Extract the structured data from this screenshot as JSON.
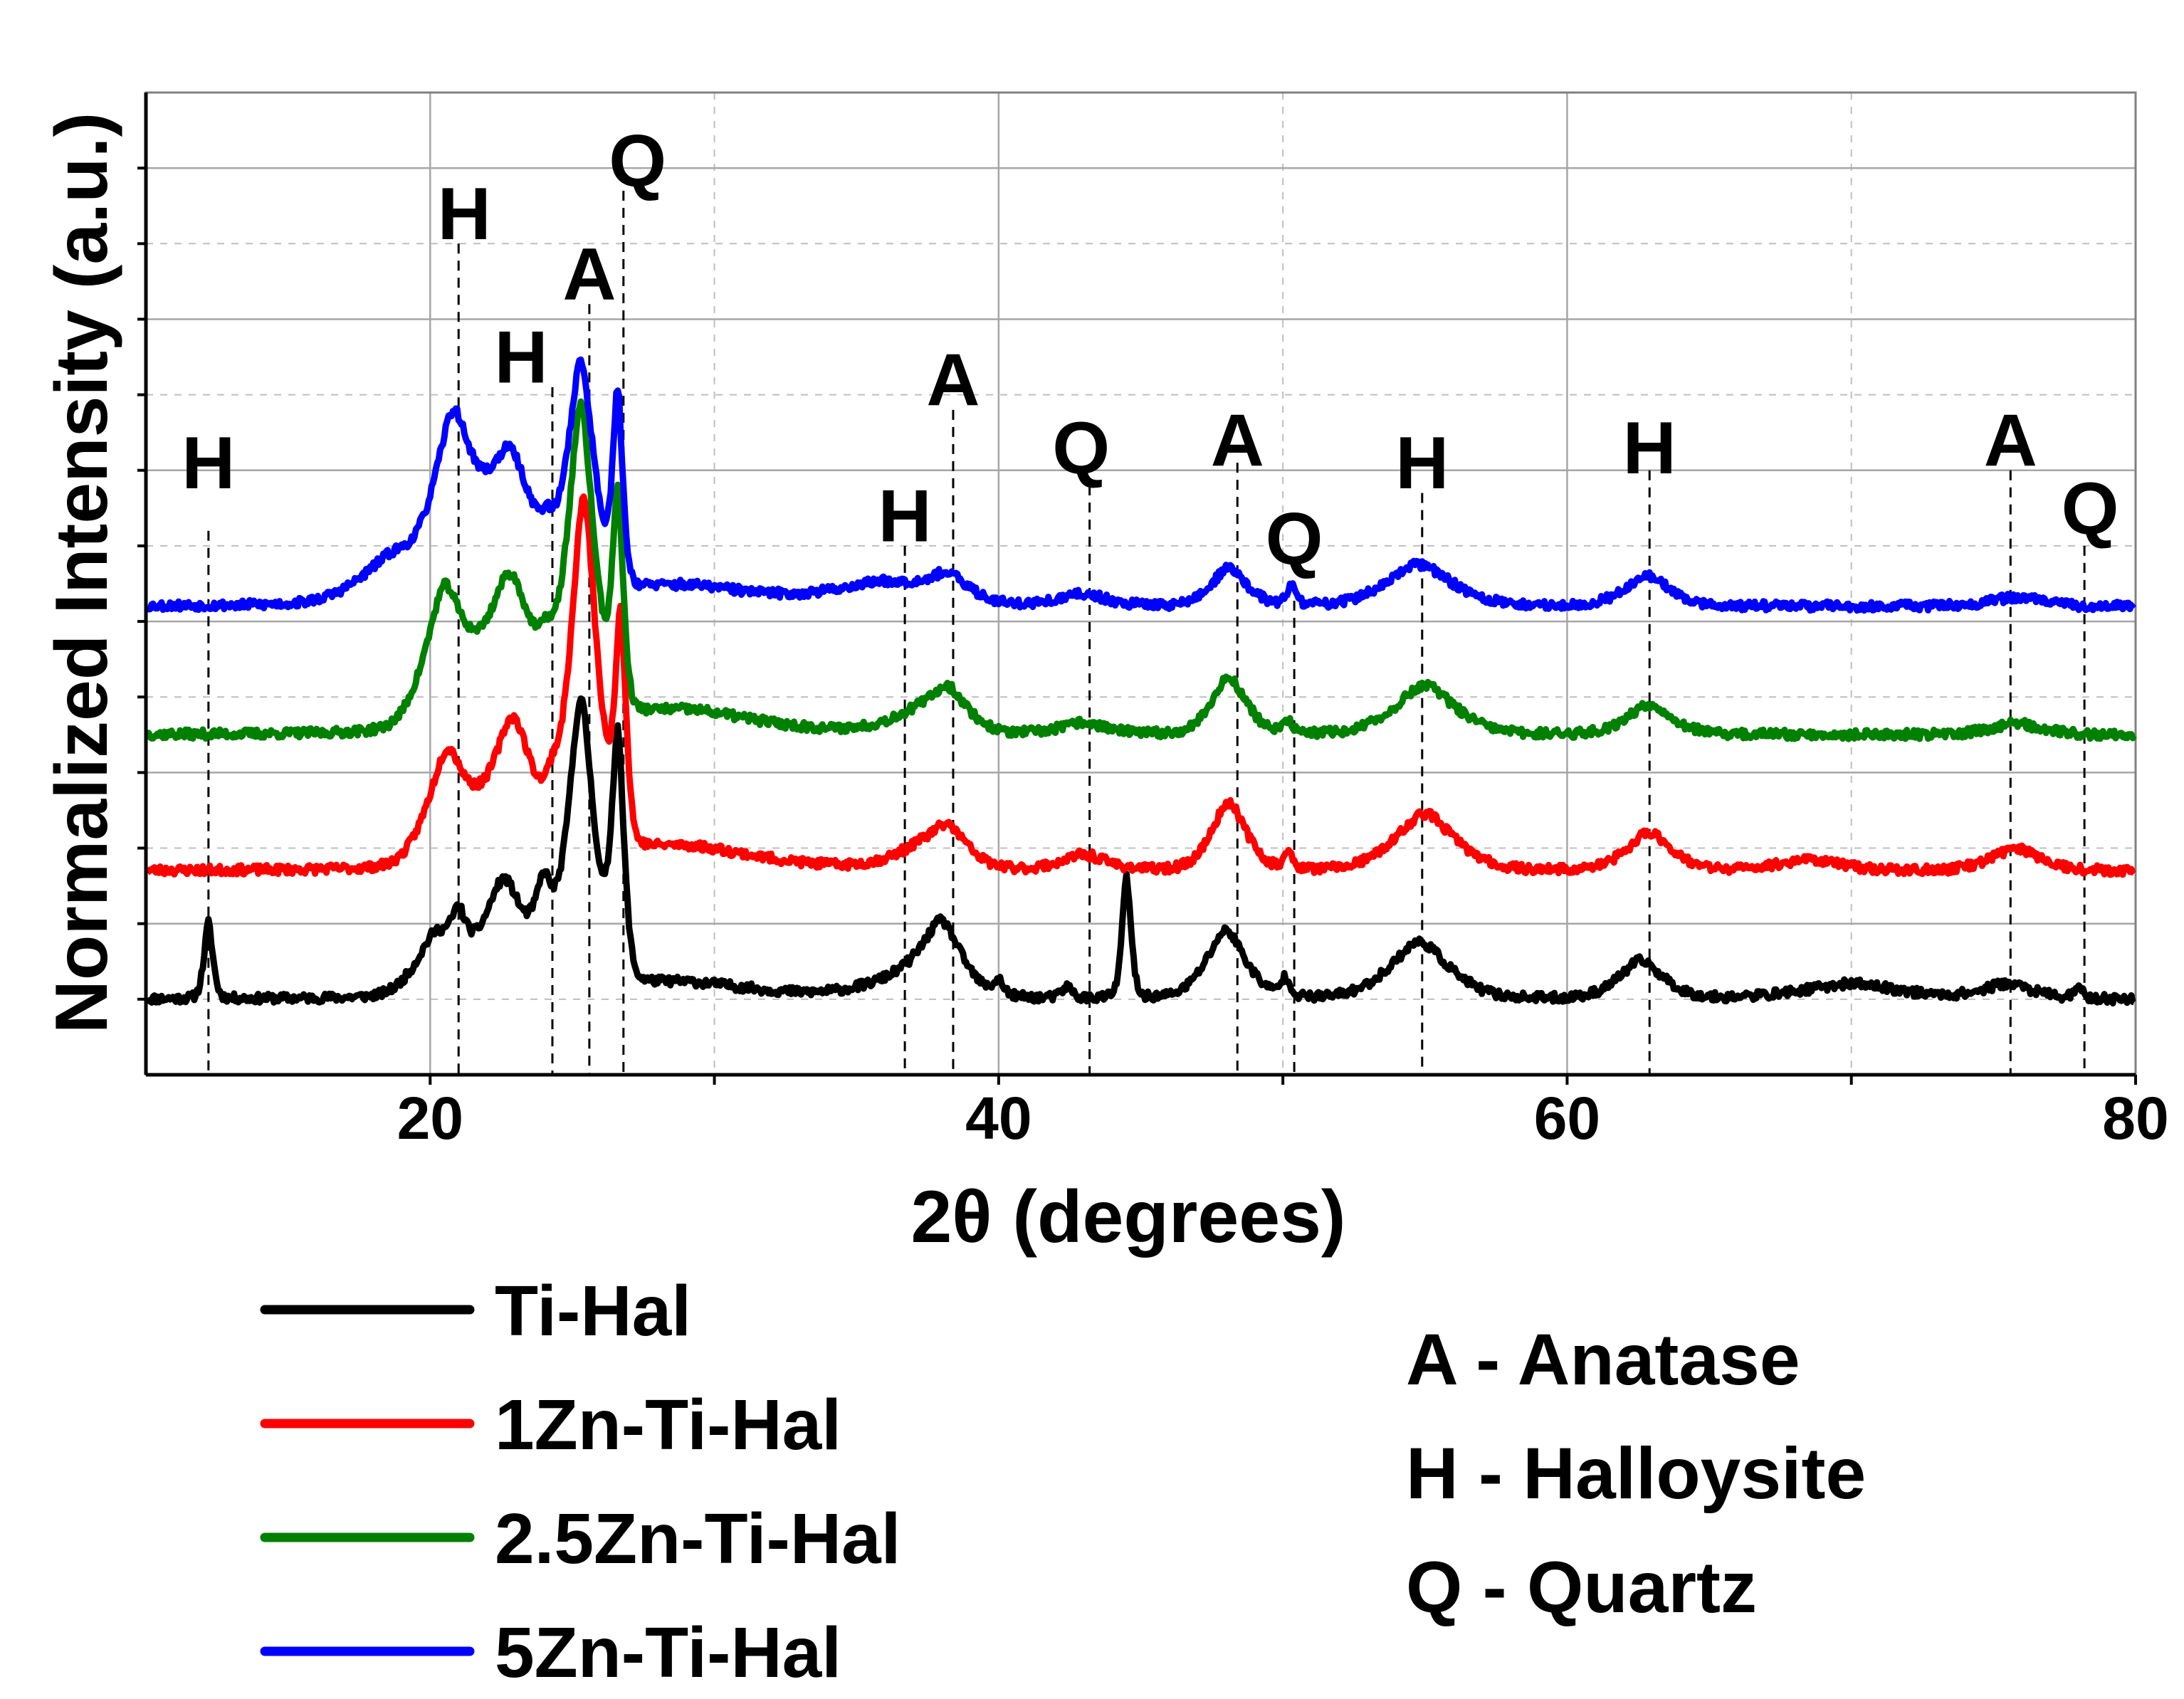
{
  "chart_data": {
    "type": "line",
    "title": "",
    "xlabel": "2θ (degrees)",
    "ylabel": "Normalized Intensity (a.u.)",
    "xlim": [
      10,
      80
    ],
    "ylim": [
      0,
      13
    ],
    "x_ticks": [
      20,
      40,
      60,
      80
    ],
    "grid": true,
    "series": [
      {
        "name": "Ti-Hal",
        "color": "#000000",
        "offset": 1.0,
        "noise_seed": 11,
        "peaks": [
          [
            12.2,
            1.0,
            0.18
          ],
          [
            20.2,
            0.8,
            0.8
          ],
          [
            21.0,
            0.55,
            0.3
          ],
          [
            22.6,
            1.5,
            0.9
          ],
          [
            24.0,
            1.0,
            0.35
          ],
          [
            25.3,
            3.8,
            0.55
          ],
          [
            26.6,
            3.2,
            0.25
          ],
          [
            29.0,
            0.2,
            3.0
          ],
          [
            38.0,
            0.9,
            0.8
          ],
          [
            36.5,
            0.25,
            1.5
          ],
          [
            40.0,
            0.2,
            0.2
          ],
          [
            42.4,
            0.15,
            0.2
          ],
          [
            44.5,
            1.6,
            0.18
          ],
          [
            48.0,
            0.9,
            0.8
          ],
          [
            50.1,
            0.25,
            0.2
          ],
          [
            54.8,
            0.75,
            1.2
          ],
          [
            62.6,
            0.5,
            0.9
          ],
          [
            70.0,
            0.2,
            2.0
          ],
          [
            75.5,
            0.2,
            1.0
          ],
          [
            78.0,
            0.12,
            0.2
          ]
        ]
      },
      {
        "name": "1Zn-Ti-Hal",
        "color": "#ff0000",
        "offset": 2.7,
        "noise_seed": 23,
        "peaks": [
          [
            20.6,
            1.5,
            0.8
          ],
          [
            22.9,
            1.9,
            0.9
          ],
          [
            24.3,
            0.4,
            0.3
          ],
          [
            25.4,
            4.7,
            0.55
          ],
          [
            26.7,
            3.0,
            0.22
          ],
          [
            29.0,
            0.3,
            3.0
          ],
          [
            38.2,
            0.5,
            0.8
          ],
          [
            37.0,
            0.2,
            1.2
          ],
          [
            43.0,
            0.2,
            0.9
          ],
          [
            48.1,
            0.9,
            0.7
          ],
          [
            50.2,
            0.2,
            0.2
          ],
          [
            55.0,
            0.75,
            1.2
          ],
          [
            62.9,
            0.5,
            0.9
          ],
          [
            68.5,
            0.15,
            1.2
          ],
          [
            75.8,
            0.3,
            1.0
          ]
        ]
      },
      {
        "name": "2.5Zn-Ti-Hal",
        "color": "#008000",
        "offset": 4.5,
        "noise_seed": 37,
        "peaks": [
          [
            20.5,
            1.8,
            0.8
          ],
          [
            22.8,
            2.0,
            1.0
          ],
          [
            24.1,
            0.4,
            0.3
          ],
          [
            25.3,
            4.1,
            0.55
          ],
          [
            26.6,
            2.8,
            0.22
          ],
          [
            29.0,
            0.3,
            3.0
          ],
          [
            38.2,
            0.55,
            0.8
          ],
          [
            36.8,
            0.2,
            1.2
          ],
          [
            43.0,
            0.15,
            0.9
          ],
          [
            48.1,
            0.75,
            0.7
          ],
          [
            50.2,
            0.15,
            0.2
          ],
          [
            55.0,
            0.65,
            1.2
          ],
          [
            62.9,
            0.4,
            0.9
          ],
          [
            75.8,
            0.15,
            1.0
          ]
        ]
      },
      {
        "name": "5Zn-Ti-Hal",
        "color": "#0000ff",
        "offset": 6.2,
        "noise_seed": 53,
        "peaks": [
          [
            18.7,
            0.6,
            1.3
          ],
          [
            20.8,
            2.2,
            0.8
          ],
          [
            22.8,
            1.9,
            1.0
          ],
          [
            24.1,
            0.3,
            0.3
          ],
          [
            25.3,
            3.0,
            0.55
          ],
          [
            26.6,
            2.5,
            0.2
          ],
          [
            29.0,
            0.25,
            3.0
          ],
          [
            38.2,
            0.3,
            0.8
          ],
          [
            36.0,
            0.3,
            2.0
          ],
          [
            43.0,
            0.15,
            0.9
          ],
          [
            48.1,
            0.5,
            0.7
          ],
          [
            50.3,
            0.25,
            0.2
          ],
          [
            54.8,
            0.55,
            1.3
          ],
          [
            62.8,
            0.4,
            0.9
          ],
          [
            75.8,
            0.12,
            1.0
          ]
        ]
      }
    ],
    "markers": [
      {
        "x": 12.2,
        "label": "H",
        "label_x": 12.2,
        "label_y": 8.1,
        "line_top": 7.2
      },
      {
        "x": 21.0,
        "label": "H",
        "label_x": 21.2,
        "label_y": 11.4,
        "line_top": 11.0
      },
      {
        "x": 24.3,
        "label": "H",
        "label_x": 23.2,
        "label_y": 9.5,
        "line_top": 9.1
      },
      {
        "x": 25.6,
        "label": "A",
        "label_x": 25.6,
        "label_y": 10.6,
        "line_top": 10.2
      },
      {
        "x": 26.8,
        "label": "Q",
        "label_x": 27.3,
        "label_y": 12.1,
        "line_top": 11.7
      },
      {
        "x": 36.7,
        "label": "H",
        "label_x": 36.7,
        "label_y": 7.4,
        "line_top": 7.0
      },
      {
        "x": 38.4,
        "label": "A",
        "label_x": 38.4,
        "label_y": 9.2,
        "line_top": 8.8
      },
      {
        "x": 43.2,
        "label": "Q",
        "label_x": 42.9,
        "label_y": 8.3,
        "line_top": 7.8
      },
      {
        "x": 48.4,
        "label": "A",
        "label_x": 48.4,
        "label_y": 8.4,
        "line_top": 8.1
      },
      {
        "x": 50.4,
        "label": "Q",
        "label_x": 50.4,
        "label_y": 7.1,
        "line_top": 6.5
      },
      {
        "x": 54.9,
        "label": "H",
        "label_x": 54.9,
        "label_y": 8.1,
        "line_top": 7.7
      },
      {
        "x": 62.9,
        "label": "H",
        "label_x": 62.9,
        "label_y": 8.3,
        "line_top": 8.0
      },
      {
        "x": 75.6,
        "label": "A",
        "label_x": 75.6,
        "label_y": 8.4,
        "line_top": 8.0
      },
      {
        "x": 78.2,
        "label": "Q",
        "label_x": 78.4,
        "label_y": 7.5,
        "line_top": 7.0
      }
    ],
    "phase_key": [
      {
        "symbol": "A",
        "text": "A - Anatase"
      },
      {
        "symbol": "H",
        "text": "H - Halloysite"
      },
      {
        "symbol": "Q",
        "text": "Q - Quartz"
      }
    ]
  }
}
